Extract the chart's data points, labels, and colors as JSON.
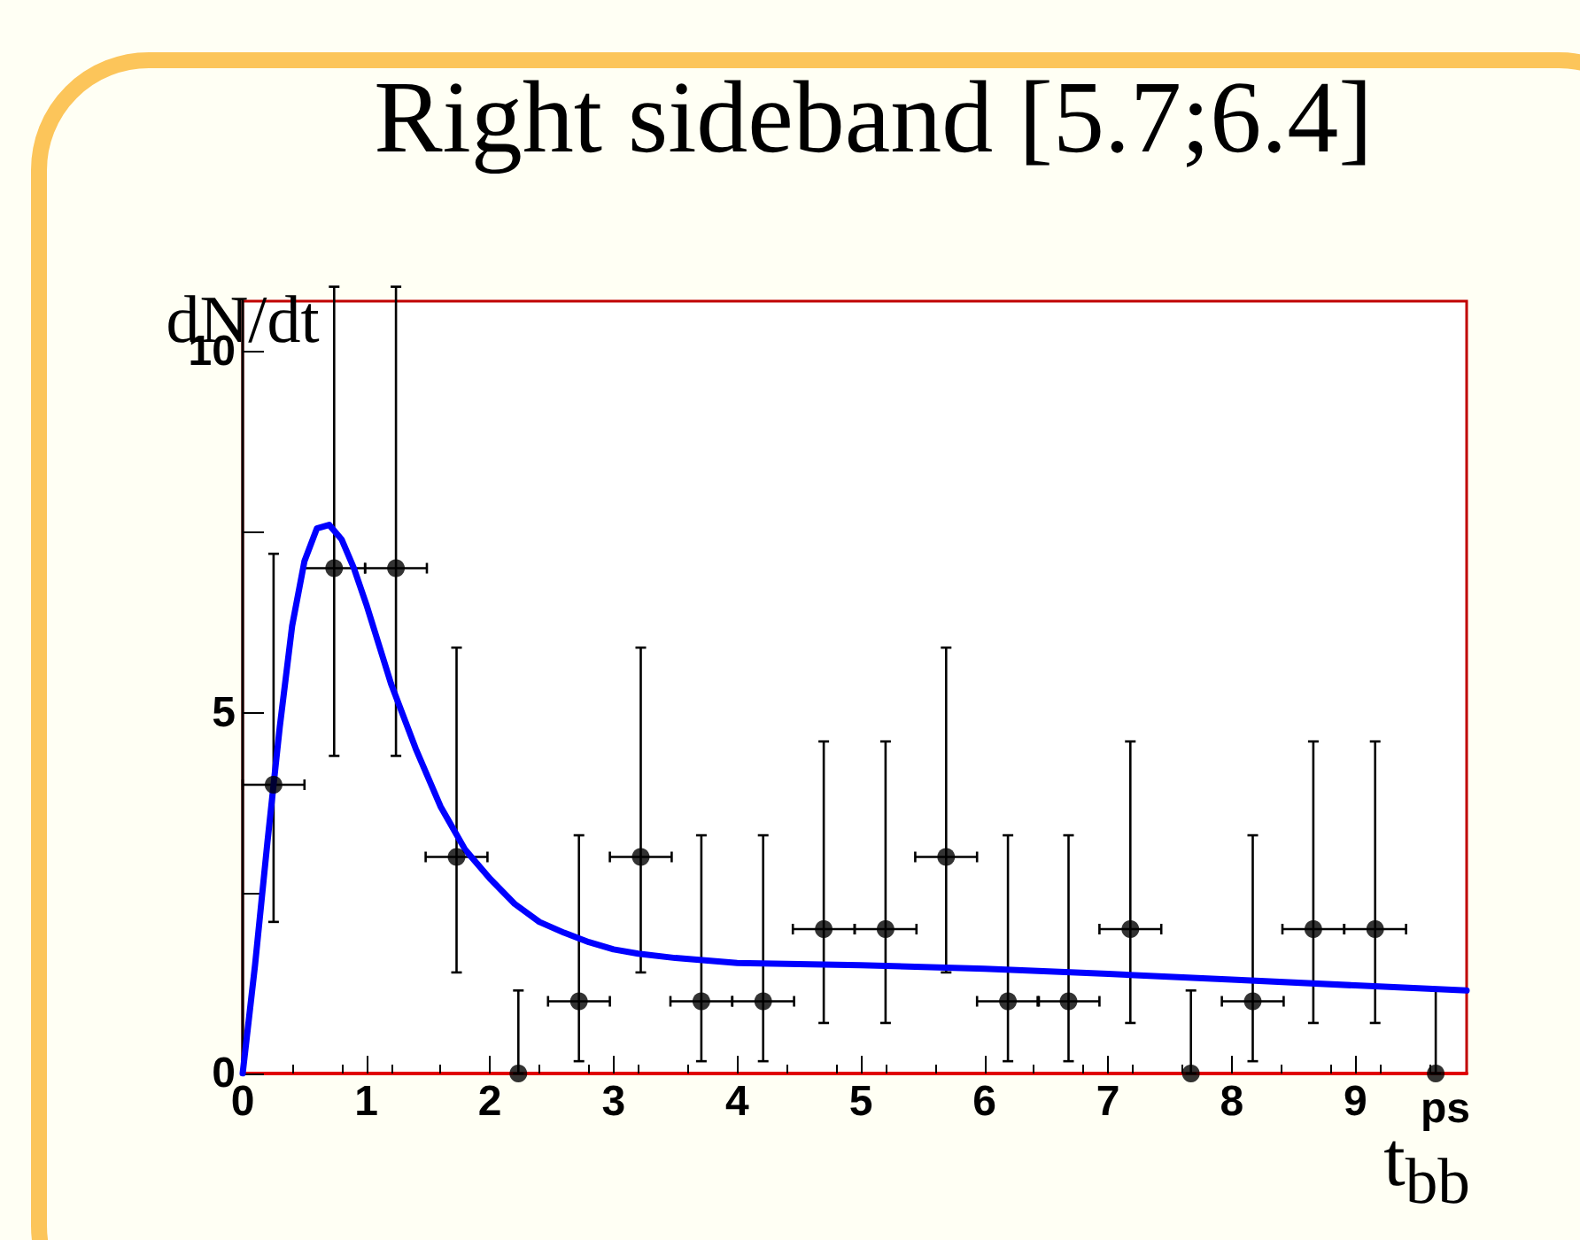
{
  "chart_data": {
    "type": "scatter",
    "title": "Right sideband [5.7;6.4]",
    "ylabel": "dN/dt",
    "xlabel": "t$_{bb}$",
    "annotations": [
      "ps"
    ],
    "xlim": [
      0,
      9.9
    ],
    "xticks": [
      0,
      1,
      2,
      3,
      4,
      5,
      6,
      7,
      8,
      9
    ],
    "ylim": [
      0,
      10.7
    ],
    "yticks": [
      0,
      {
        "value": 2.5,
        "label": null
      },
      5,
      {
        "value": 7.5,
        "label": null
      },
      10
    ],
    "grid": false,
    "series": [
      {
        "type": "scatter",
        "color": "#000000",
        "marker": "circle",
        "x": [
          0.25,
          0.74,
          1.24,
          1.73,
          2.23,
          2.72,
          3.22,
          3.71,
          4.21,
          4.7,
          5.2,
          5.69,
          6.19,
          6.68,
          7.18,
          7.67,
          8.17,
          8.66,
          9.16,
          9.65
        ],
        "values": [
          4,
          7,
          7,
          3,
          0,
          1,
          3,
          1,
          1,
          2,
          2,
          3,
          1,
          1,
          2,
          0,
          1,
          2,
          2,
          0
        ],
        "errors": [
          [
            2.1,
            7.2
          ],
          [
            4.4,
            10.9
          ],
          [
            4.4,
            10.9
          ],
          [
            1.4,
            5.9
          ],
          [
            0,
            1.15
          ],
          [
            0.17,
            3.3
          ],
          [
            1.4,
            5.9
          ],
          [
            0.17,
            3.3
          ],
          [
            0.17,
            3.3
          ],
          [
            0.7,
            4.6
          ],
          [
            0.7,
            4.6
          ],
          [
            1.4,
            5.9
          ],
          [
            0.17,
            3.3
          ],
          [
            0.17,
            3.3
          ],
          [
            0.7,
            4.6
          ],
          [
            0,
            1.15
          ],
          [
            0.17,
            3.3
          ],
          [
            0.7,
            4.6
          ],
          [
            0.7,
            4.6
          ],
          [
            0,
            1.15
          ]
        ],
        "xerrors": [
          0.25,
          0.25,
          0.25,
          0.25,
          null,
          0.25,
          0.25,
          0.25,
          0.25,
          0.25,
          0.25,
          0.25,
          0.25,
          0.25,
          0.25,
          null,
          0.25,
          0.25,
          0.25,
          null
        ]
      },
      {
        "type": "line",
        "color": "#0000ff",
        "marker": "none",
        "line_style": "solid",
        "x": [
          0,
          0.1,
          0.2,
          0.3,
          0.4,
          0.5,
          0.6,
          0.7,
          0.8,
          0.9,
          1.0,
          1.2,
          1.4,
          1.6,
          1.8,
          2.0,
          2.2,
          2.4,
          2.6,
          2.8,
          3.0,
          3.2,
          3.5,
          4.0,
          5.0,
          6.0,
          7.0,
          8.0,
          9.0,
          9.9
        ],
        "values": [
          0,
          1.5,
          3.2,
          4.8,
          6.2,
          7.1,
          7.55,
          7.6,
          7.4,
          7.0,
          6.5,
          5.4,
          4.5,
          3.7,
          3.1,
          2.7,
          2.35,
          2.1,
          1.95,
          1.82,
          1.72,
          1.66,
          1.6,
          1.53,
          1.5,
          1.45,
          1.38,
          1.3,
          1.22,
          1.15
        ]
      }
    ]
  }
}
